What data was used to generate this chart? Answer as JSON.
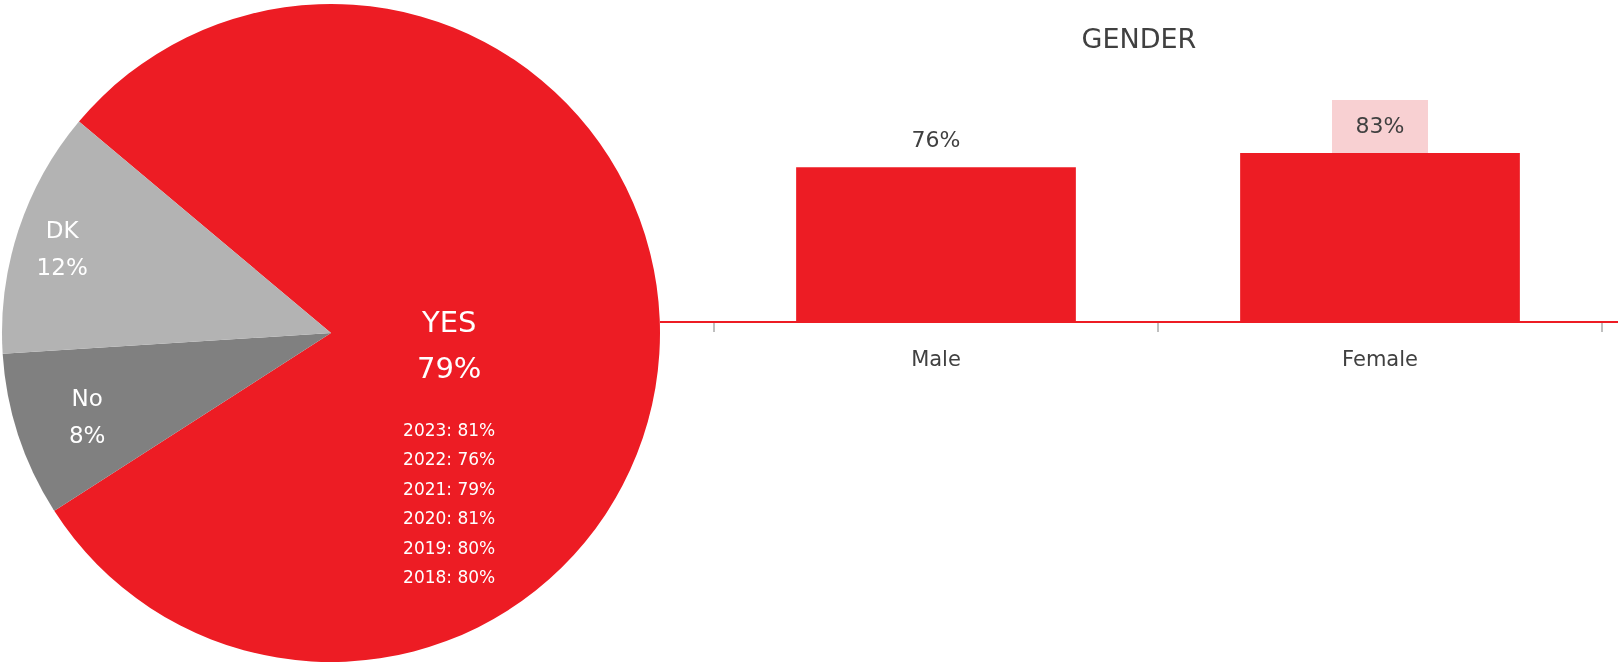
{
  "chart_data": [
    {
      "type": "pie",
      "categories": [
        "YES",
        "No",
        "DK"
      ],
      "values": [
        79,
        8,
        12
      ],
      "colors": [
        "#ed1c24",
        "#808080",
        "#b3b3b3"
      ],
      "value_labels": [
        "79%",
        "8%",
        "12%"
      ],
      "annotations": [
        "2023: 81%",
        "2022: 76%",
        "2021: 79%",
        "2020: 81%",
        "2019: 80%",
        "2018: 80%"
      ]
    },
    {
      "type": "bar",
      "title": "GENDER",
      "categories": [
        "Male",
        "Female"
      ],
      "values": [
        76,
        83
      ],
      "color": "#ed1c24",
      "value_labels": [
        "76%",
        "83%"
      ]
    }
  ]
}
